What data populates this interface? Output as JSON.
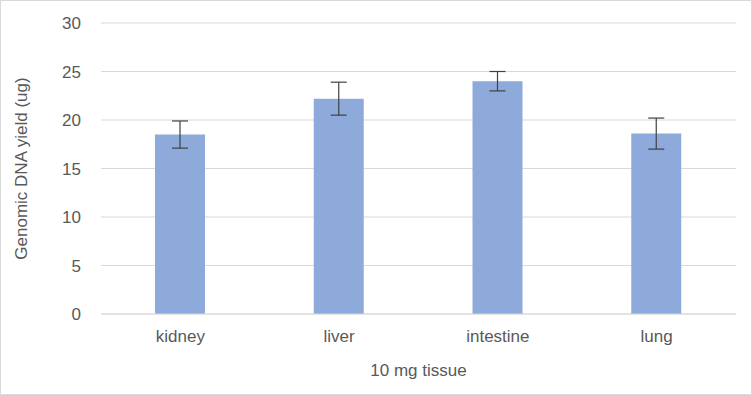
{
  "chart_data": {
    "type": "bar",
    "x_label": "10 mg tissue",
    "y_label": "Genomic DNA yield (ug)",
    "categories": [
      "kidney",
      "liver",
      "intestine",
      "lung"
    ],
    "values": [
      18.5,
      22.2,
      24.0,
      18.6
    ],
    "errors": [
      1.4,
      1.7,
      1.0,
      1.6
    ],
    "color": "#8eaadb",
    "ylim": [
      0,
      30
    ],
    "yticks": [
      0,
      5,
      10,
      15,
      20,
      25,
      30
    ],
    "grid": true
  }
}
